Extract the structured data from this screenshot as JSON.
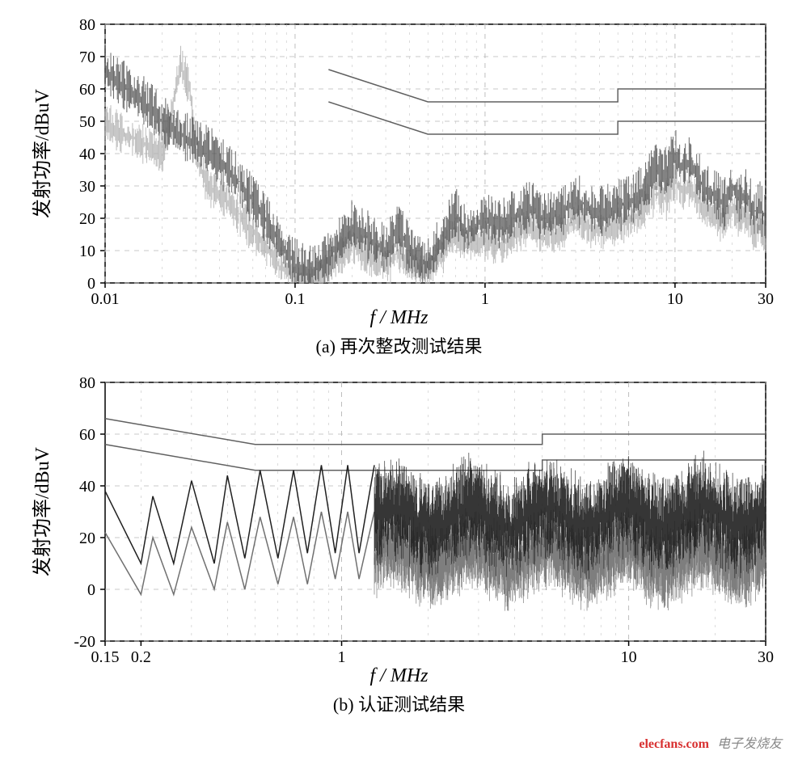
{
  "background_color": "#ffffff",
  "axis_color": "#000000",
  "grid_color": "#b8b8b8",
  "tick_fontsize": 20,
  "label_fontsize": 24,
  "caption_fontsize": 22,
  "trace_color_dark": "#404040",
  "trace_color_light": "#9a9a9a",
  "limit_line_color": "#606060",
  "limit_line_width": 1.5,
  "chart_a": {
    "title": "(a) 再次整改测试结果",
    "xlabel": "f / MHz",
    "ylabel": "发射功率/dBuV",
    "x_scale": "log",
    "xlim": [
      0.01,
      30
    ],
    "ylim": [
      0,
      80
    ],
    "yticks": [
      0,
      10,
      20,
      30,
      40,
      50,
      60,
      70,
      80
    ],
    "xticks_major": [
      0.01,
      0.1,
      1,
      10,
      30
    ],
    "xtick_labels": [
      "0.01",
      "0.1",
      "1",
      "10",
      "30"
    ],
    "limit_upper": [
      [
        0.15,
        66
      ],
      [
        0.5,
        56
      ],
      [
        5,
        56
      ],
      [
        5,
        60
      ],
      [
        30,
        60
      ]
    ],
    "limit_lower": [
      [
        0.15,
        56
      ],
      [
        0.5,
        46
      ],
      [
        5,
        46
      ],
      [
        5,
        50
      ],
      [
        30,
        50
      ]
    ],
    "seed": 1,
    "series_main": {
      "color": "#505050",
      "envelope": [
        [
          0.01,
          66
        ],
        [
          0.012,
          62
        ],
        [
          0.015,
          58
        ],
        [
          0.02,
          50
        ],
        [
          0.025,
          46
        ],
        [
          0.03,
          44
        ],
        [
          0.04,
          38
        ],
        [
          0.05,
          32
        ],
        [
          0.06,
          26
        ],
        [
          0.07,
          20
        ],
        [
          0.08,
          14
        ],
        [
          0.09,
          10
        ],
        [
          0.1,
          6
        ],
        [
          0.12,
          4
        ],
        [
          0.15,
          8
        ],
        [
          0.2,
          18
        ],
        [
          0.25,
          14
        ],
        [
          0.3,
          10
        ],
        [
          0.35,
          18
        ],
        [
          0.4,
          10
        ],
        [
          0.5,
          6
        ],
        [
          0.6,
          14
        ],
        [
          0.7,
          22
        ],
        [
          0.8,
          16
        ],
        [
          1.0,
          20
        ],
        [
          1.2,
          18
        ],
        [
          1.5,
          22
        ],
        [
          1.8,
          24
        ],
        [
          2.0,
          20
        ],
        [
          2.5,
          22
        ],
        [
          3.0,
          26
        ],
        [
          3.5,
          24
        ],
        [
          4.0,
          22
        ],
        [
          5.0,
          24
        ],
        [
          6.0,
          26
        ],
        [
          7.0,
          30
        ],
        [
          8.0,
          36
        ],
        [
          9.0,
          34
        ],
        [
          10.0,
          40
        ],
        [
          11.0,
          36
        ],
        [
          12.0,
          38
        ],
        [
          14.0,
          30
        ],
        [
          16.0,
          28
        ],
        [
          18.0,
          24
        ],
        [
          20.0,
          30
        ],
        [
          22.0,
          26
        ],
        [
          24.0,
          28
        ],
        [
          26.0,
          22
        ],
        [
          28.0,
          24
        ],
        [
          30.0,
          20
        ]
      ],
      "noise_amp": 8
    },
    "series_faint": {
      "color": "#b0b0b0",
      "envelope": [
        [
          0.01,
          50
        ],
        [
          0.015,
          44
        ],
        [
          0.02,
          40
        ],
        [
          0.025,
          68
        ],
        [
          0.028,
          60
        ],
        [
          0.03,
          40
        ],
        [
          0.035,
          30
        ],
        [
          0.04,
          28
        ],
        [
          0.05,
          22
        ],
        [
          0.06,
          16
        ],
        [
          0.07,
          12
        ],
        [
          0.08,
          6
        ],
        [
          0.09,
          4
        ],
        [
          0.1,
          2
        ],
        [
          0.12,
          0
        ],
        [
          0.14,
          2
        ],
        [
          0.15,
          6
        ],
        [
          0.2,
          12
        ],
        [
          0.25,
          8
        ],
        [
          0.3,
          6
        ],
        [
          0.35,
          10
        ],
        [
          0.4,
          6
        ],
        [
          0.5,
          4
        ],
        [
          0.6,
          10
        ],
        [
          0.7,
          16
        ],
        [
          0.8,
          12
        ],
        [
          1.0,
          14
        ],
        [
          1.2,
          12
        ],
        [
          1.5,
          16
        ],
        [
          1.8,
          18
        ],
        [
          2.0,
          14
        ],
        [
          2.5,
          16
        ],
        [
          3.0,
          20
        ],
        [
          4.0,
          16
        ],
        [
          5.0,
          18
        ],
        [
          6.0,
          20
        ],
        [
          7.0,
          24
        ],
        [
          8.0,
          28
        ],
        [
          9.0,
          26
        ],
        [
          10.0,
          32
        ],
        [
          11.0,
          28
        ],
        [
          12.0,
          30
        ],
        [
          14.0,
          24
        ],
        [
          16.0,
          22
        ],
        [
          18.0,
          18
        ],
        [
          20.0,
          24
        ],
        [
          22.0,
          20
        ],
        [
          24.0,
          22
        ],
        [
          26.0,
          16
        ],
        [
          28.0,
          18
        ],
        [
          30.0,
          14
        ]
      ],
      "noise_amp": 6
    }
  },
  "chart_b": {
    "title": "(b) 认证测试结果",
    "xlabel": "f / MHz",
    "ylabel": "发射功率/dBuV",
    "x_scale": "log",
    "xlim": [
      0.15,
      30
    ],
    "ylim": [
      -20,
      80
    ],
    "yticks": [
      -20,
      0,
      20,
      40,
      60,
      80
    ],
    "xticks_major": [
      0.15,
      0.2,
      1,
      10,
      30
    ],
    "xtick_labels": [
      "0.15",
      "0.2",
      "1",
      "10",
      "30"
    ],
    "limit_upper": [
      [
        0.15,
        66
      ],
      [
        0.5,
        56
      ],
      [
        5,
        56
      ],
      [
        5,
        60
      ],
      [
        30,
        60
      ]
    ],
    "limit_lower": [
      [
        0.15,
        56
      ],
      [
        0.5,
        46
      ],
      [
        5,
        46
      ],
      [
        5,
        50
      ],
      [
        30,
        50
      ]
    ],
    "seed": 2,
    "series_main": {
      "color": "#202020",
      "peak_high": [
        [
          0.15,
          38
        ],
        [
          0.2,
          10
        ],
        [
          0.22,
          36
        ],
        [
          0.26,
          10
        ],
        [
          0.3,
          42
        ],
        [
          0.36,
          10
        ],
        [
          0.4,
          44
        ],
        [
          0.46,
          12
        ],
        [
          0.52,
          46
        ],
        [
          0.6,
          12
        ],
        [
          0.68,
          46
        ],
        [
          0.76,
          14
        ],
        [
          0.85,
          48
        ],
        [
          0.95,
          14
        ],
        [
          1.05,
          48
        ],
        [
          1.15,
          14
        ],
        [
          1.3,
          48
        ]
      ],
      "dense_from": 1.3,
      "dense_center": 28,
      "dense_amp": 22
    },
    "series_lower": {
      "color": "#707070",
      "peak_high": [
        [
          0.15,
          22
        ],
        [
          0.2,
          -2
        ],
        [
          0.22,
          20
        ],
        [
          0.26,
          -2
        ],
        [
          0.3,
          24
        ],
        [
          0.36,
          0
        ],
        [
          0.4,
          26
        ],
        [
          0.46,
          0
        ],
        [
          0.52,
          28
        ],
        [
          0.6,
          2
        ],
        [
          0.68,
          28
        ],
        [
          0.76,
          2
        ],
        [
          0.85,
          30
        ],
        [
          0.95,
          4
        ],
        [
          1.05,
          30
        ],
        [
          1.15,
          4
        ],
        [
          1.3,
          30
        ]
      ],
      "dense_from": 1.3,
      "dense_center": 12,
      "dense_amp": 18
    }
  },
  "watermark": {
    "red": "elecfans.com",
    "gray": "电子发烧友"
  }
}
